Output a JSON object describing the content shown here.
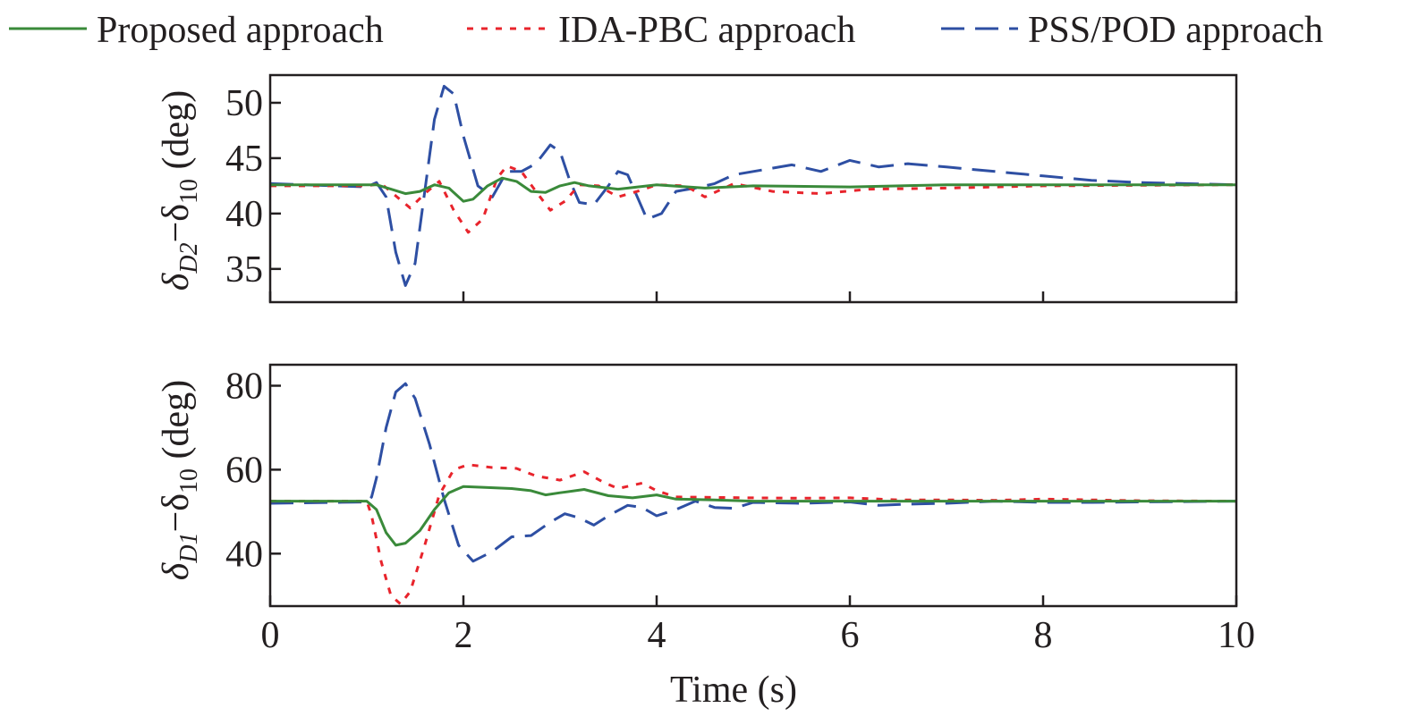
{
  "legend": {
    "items": [
      {
        "label": "Proposed approach",
        "color": "#3a8a3a",
        "dash": "solid"
      },
      {
        "label": "IDA-PBC approach",
        "color": "#e8242c",
        "dash": "dotted"
      },
      {
        "label": "PSS/POD approach",
        "color": "#2e4fa3",
        "dash": "dashed"
      }
    ]
  },
  "chart_data": [
    {
      "type": "line",
      "ylabel": "δD2−δ10 (deg)",
      "ylabel_parts": {
        "base1": "δ",
        "sub1": "D2",
        "mid": "−δ",
        "sub2": "10",
        "unit": " (deg)"
      },
      "xlim": [
        0,
        10
      ],
      "ylim": [
        32,
        52.5
      ],
      "yticks": [
        35,
        40,
        45,
        50
      ],
      "xticks": [
        0,
        2,
        4,
        6,
        8,
        10
      ],
      "grid": false,
      "series": [
        {
          "name": "Proposed approach",
          "color": "#3a8a3a",
          "dash": "solid",
          "points": [
            [
              0,
              42.6
            ],
            [
              1.0,
              42.6
            ],
            [
              1.1,
              42.6
            ],
            [
              1.25,
              42.2
            ],
            [
              1.4,
              41.8
            ],
            [
              1.55,
              42.0
            ],
            [
              1.7,
              42.6
            ],
            [
              1.85,
              42.3
            ],
            [
              2.0,
              41.1
            ],
            [
              2.1,
              41.3
            ],
            [
              2.25,
              42.5
            ],
            [
              2.4,
              43.2
            ],
            [
              2.55,
              42.9
            ],
            [
              2.7,
              42.0
            ],
            [
              2.85,
              41.9
            ],
            [
              3.0,
              42.5
            ],
            [
              3.15,
              42.8
            ],
            [
              3.3,
              42.5
            ],
            [
              3.6,
              42.2
            ],
            [
              4.0,
              42.6
            ],
            [
              4.5,
              42.3
            ],
            [
              5.0,
              42.5
            ],
            [
              6.0,
              42.4
            ],
            [
              7.0,
              42.6
            ],
            [
              8.0,
              42.6
            ],
            [
              10.0,
              42.6
            ]
          ]
        },
        {
          "name": "IDA-PBC approach",
          "color": "#e8242c",
          "dash": "dotted",
          "points": [
            [
              0,
              42.5
            ],
            [
              1.0,
              42.5
            ],
            [
              1.15,
              42.7
            ],
            [
              1.3,
              41.6
            ],
            [
              1.45,
              40.5
            ],
            [
              1.6,
              41.8
            ],
            [
              1.75,
              42.9
            ],
            [
              1.9,
              40.3
            ],
            [
              2.05,
              38.3
            ],
            [
              2.2,
              39.5
            ],
            [
              2.35,
              43.2
            ],
            [
              2.45,
              44.3
            ],
            [
              2.6,
              43.8
            ],
            [
              2.75,
              42.0
            ],
            [
              2.9,
              40.3
            ],
            [
              3.05,
              41.1
            ],
            [
              3.2,
              42.6
            ],
            [
              3.4,
              42.5
            ],
            [
              3.6,
              41.5
            ],
            [
              3.8,
              42.0
            ],
            [
              4.0,
              42.6
            ],
            [
              4.3,
              42.5
            ],
            [
              4.5,
              41.5
            ],
            [
              4.8,
              42.7
            ],
            [
              5.2,
              42.0
            ],
            [
              5.7,
              41.8
            ],
            [
              6.2,
              42.2
            ],
            [
              7.0,
              42.3
            ],
            [
              8.0,
              42.5
            ],
            [
              10.0,
              42.6
            ]
          ]
        },
        {
          "name": "PSS/POD approach",
          "color": "#2e4fa3",
          "dash": "dashed",
          "points": [
            [
              0,
              42.7
            ],
            [
              1.0,
              42.4
            ],
            [
              1.1,
              42.8
            ],
            [
              1.2,
              41.5
            ],
            [
              1.3,
              36.5
            ],
            [
              1.4,
              33.5
            ],
            [
              1.5,
              35.5
            ],
            [
              1.6,
              42.0
            ],
            [
              1.7,
              48.5
            ],
            [
              1.8,
              51.5
            ],
            [
              1.9,
              50.8
            ],
            [
              2.0,
              47.0
            ],
            [
              2.15,
              42.5
            ],
            [
              2.3,
              41.5
            ],
            [
              2.45,
              43.8
            ],
            [
              2.6,
              43.8
            ],
            [
              2.75,
              44.5
            ],
            [
              2.9,
              46.2
            ],
            [
              3.0,
              45.6
            ],
            [
              3.1,
              43.0
            ],
            [
              3.2,
              41.0
            ],
            [
              3.35,
              40.8
            ],
            [
              3.5,
              42.5
            ],
            [
              3.6,
              43.8
            ],
            [
              3.7,
              43.5
            ],
            [
              3.8,
              41.5
            ],
            [
              3.9,
              39.5
            ],
            [
              4.05,
              40.0
            ],
            [
              4.2,
              42.0
            ],
            [
              4.4,
              42.3
            ],
            [
              4.6,
              42.7
            ],
            [
              4.8,
              43.5
            ],
            [
              5.0,
              43.8
            ],
            [
              5.4,
              44.4
            ],
            [
              5.7,
              43.8
            ],
            [
              6.0,
              44.8
            ],
            [
              6.3,
              44.2
            ],
            [
              6.6,
              44.5
            ],
            [
              7.0,
              44.2
            ],
            [
              7.5,
              43.8
            ],
            [
              8.0,
              43.4
            ],
            [
              8.5,
              43.0
            ],
            [
              9.0,
              42.8
            ],
            [
              10.0,
              42.6
            ]
          ]
        }
      ]
    },
    {
      "type": "line",
      "ylabel": "δD1−δ10 (deg)",
      "ylabel_parts": {
        "base1": "δ",
        "sub1": "D1",
        "mid": "−δ",
        "sub2": "10",
        "unit": " (deg)"
      },
      "xlabel": "Time (s)",
      "xlim": [
        0,
        10
      ],
      "ylim": [
        27.5,
        85
      ],
      "yticks": [
        40,
        60,
        80
      ],
      "xticks": [
        0,
        2,
        4,
        6,
        8,
        10
      ],
      "xtick_labels": [
        "0",
        "2",
        "4",
        "6",
        "8",
        "10"
      ],
      "grid": false,
      "series": [
        {
          "name": "Proposed approach",
          "color": "#3a8a3a",
          "dash": "solid",
          "points": [
            [
              0,
              52.5
            ],
            [
              1.0,
              52.5
            ],
            [
              1.1,
              50.5
            ],
            [
              1.2,
              45.0
            ],
            [
              1.3,
              42.0
            ],
            [
              1.4,
              42.5
            ],
            [
              1.55,
              45.5
            ],
            [
              1.7,
              50.5
            ],
            [
              1.85,
              54.5
            ],
            [
              2.0,
              56.0
            ],
            [
              2.2,
              55.8
            ],
            [
              2.5,
              55.5
            ],
            [
              2.7,
              55.0
            ],
            [
              2.85,
              54.0
            ],
            [
              3.0,
              54.5
            ],
            [
              3.25,
              55.3
            ],
            [
              3.5,
              53.8
            ],
            [
              3.75,
              53.3
            ],
            [
              4.0,
              54.0
            ],
            [
              4.2,
              53.0
            ],
            [
              4.6,
              52.8
            ],
            [
              5.0,
              52.5
            ],
            [
              6.0,
              52.5
            ],
            [
              10.0,
              52.5
            ]
          ]
        },
        {
          "name": "IDA-PBC approach",
          "color": "#e8242c",
          "dash": "dotted",
          "points": [
            [
              0,
              52.5
            ],
            [
              1.0,
              52.5
            ],
            [
              1.05,
              49.0
            ],
            [
              1.15,
              38.0
            ],
            [
              1.25,
              30.0
            ],
            [
              1.35,
              28.0
            ],
            [
              1.45,
              31.0
            ],
            [
              1.6,
              42.0
            ],
            [
              1.75,
              54.0
            ],
            [
              1.9,
              60.0
            ],
            [
              2.05,
              61.2
            ],
            [
              2.3,
              60.5
            ],
            [
              2.55,
              60.3
            ],
            [
              2.75,
              58.5
            ],
            [
              3.0,
              57.5
            ],
            [
              3.25,
              59.5
            ],
            [
              3.45,
              57.0
            ],
            [
              3.6,
              55.5
            ],
            [
              3.85,
              56.8
            ],
            [
              4.0,
              55.0
            ],
            [
              4.2,
              53.5
            ],
            [
              5.0,
              53.3
            ],
            [
              5.5,
              53.2
            ],
            [
              6.0,
              53.3
            ],
            [
              6.5,
              52.8
            ],
            [
              7.0,
              52.8
            ],
            [
              7.5,
              52.7
            ],
            [
              8.0,
              53.0
            ],
            [
              9.0,
              52.6
            ],
            [
              10.0,
              52.5
            ]
          ]
        },
        {
          "name": "PSS/POD approach",
          "color": "#2e4fa3",
          "dash": "dashed",
          "points": [
            [
              0,
              52.0
            ],
            [
              1.0,
              52.3
            ],
            [
              1.05,
              53.5
            ],
            [
              1.1,
              58.0
            ],
            [
              1.2,
              70.0
            ],
            [
              1.3,
              78.5
            ],
            [
              1.4,
              80.5
            ],
            [
              1.5,
              77.0
            ],
            [
              1.65,
              66.0
            ],
            [
              1.8,
              53.0
            ],
            [
              1.95,
              42.0
            ],
            [
              2.1,
              38.2
            ],
            [
              2.3,
              40.5
            ],
            [
              2.5,
              44.0
            ],
            [
              2.7,
              44.3
            ],
            [
              2.9,
              47.5
            ],
            [
              3.05,
              49.5
            ],
            [
              3.2,
              48.5
            ],
            [
              3.35,
              46.8
            ],
            [
              3.5,
              49.0
            ],
            [
              3.7,
              51.5
            ],
            [
              3.85,
              51.0
            ],
            [
              4.0,
              49.0
            ],
            [
              4.2,
              50.5
            ],
            [
              4.4,
              52.5
            ],
            [
              4.6,
              51.0
            ],
            [
              4.8,
              50.8
            ],
            [
              5.0,
              52.2
            ],
            [
              5.5,
              52.0
            ],
            [
              6.0,
              52.3
            ],
            [
              6.3,
              51.5
            ],
            [
              6.6,
              51.8
            ],
            [
              7.0,
              52.0
            ],
            [
              7.5,
              52.5
            ],
            [
              8.0,
              52.2
            ],
            [
              8.5,
              52.2
            ],
            [
              9.0,
              52.3
            ],
            [
              10.0,
              52.5
            ]
          ]
        }
      ]
    }
  ]
}
